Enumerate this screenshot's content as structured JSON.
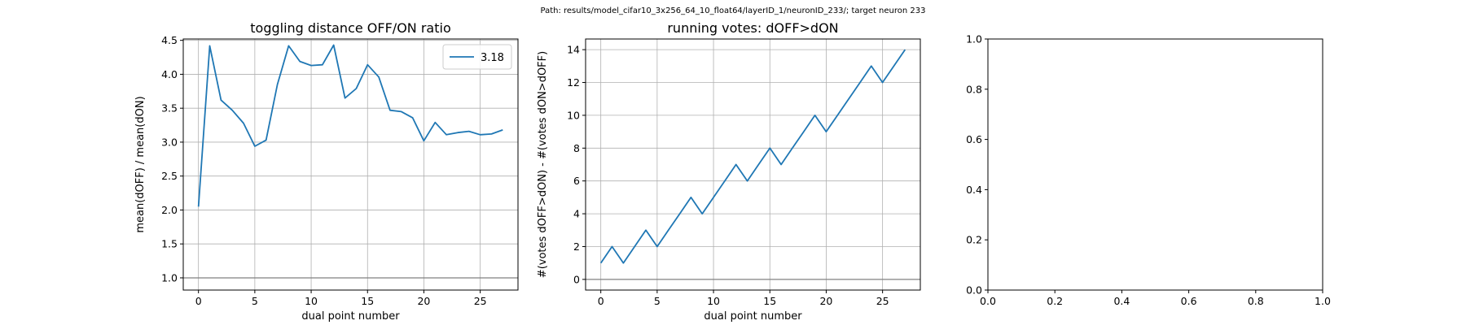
{
  "figure": {
    "suptitle": "Path: results/model_cifar10_3x256_64_10_float64/layerID_1/neuronID_233/; target neuron 233"
  },
  "colors": {
    "series": "#1f77b4",
    "grid": "#b0b0b0",
    "refline": "#808080"
  },
  "chart_data": [
    {
      "type": "line",
      "title": "toggling distance OFF/ON ratio",
      "xlabel": "dual point number",
      "ylabel": "mean(dOFF) / mean(dON)",
      "xlim": [
        -1.35,
        28.35
      ],
      "ylim": [
        0.82,
        4.52
      ],
      "xticks": [
        0,
        5,
        10,
        15,
        20,
        25
      ],
      "yticks": [
        1.0,
        1.5,
        2.0,
        2.5,
        3.0,
        3.5,
        4.0,
        4.5
      ],
      "ytick_format": 1,
      "grid": true,
      "hline": 1.0,
      "legend": {
        "position": "top-right",
        "entries": [
          "3.18"
        ]
      },
      "series": [
        {
          "name": "3.18",
          "x": [
            0,
            1,
            2,
            3,
            4,
            5,
            6,
            7,
            8,
            9,
            10,
            11,
            12,
            13,
            14,
            15,
            16,
            17,
            18,
            19,
            20,
            21,
            22,
            23,
            24,
            25,
            26,
            27
          ],
          "values": [
            2.05,
            4.42,
            3.62,
            3.47,
            3.28,
            2.94,
            3.03,
            3.85,
            4.42,
            4.19,
            4.13,
            4.14,
            4.43,
            3.65,
            3.79,
            4.14,
            3.96,
            3.47,
            3.45,
            3.36,
            3.02,
            3.29,
            3.11,
            3.14,
            3.16,
            3.11,
            3.12,
            3.18
          ]
        }
      ]
    },
    {
      "type": "line",
      "title": "running votes: dOFF>dON",
      "xlabel": "dual point number",
      "ylabel": "#(votes dOFF>dON) - #(votes dON>dOFF)",
      "xlim": [
        -1.35,
        28.35
      ],
      "ylim": [
        -0.65,
        14.65
      ],
      "xticks": [
        0,
        5,
        10,
        15,
        20,
        25
      ],
      "yticks": [
        0,
        2,
        4,
        6,
        8,
        10,
        12,
        14
      ],
      "ytick_format": 0,
      "grid": true,
      "hline": 0,
      "series": [
        {
          "name": "",
          "x": [
            0,
            1,
            2,
            3,
            4,
            5,
            6,
            7,
            8,
            9,
            10,
            11,
            12,
            13,
            14,
            15,
            16,
            17,
            18,
            19,
            20,
            21,
            22,
            23,
            24,
            25,
            26,
            27
          ],
          "values": [
            1,
            2,
            1,
            2,
            3,
            2,
            3,
            4,
            5,
            4,
            5,
            6,
            7,
            6,
            7,
            8,
            7,
            8,
            9,
            10,
            9,
            10,
            11,
            12,
            13,
            12,
            13,
            14
          ]
        }
      ]
    },
    {
      "type": "line",
      "title": "",
      "xlabel": "",
      "ylabel": "",
      "xlim": [
        0,
        1
      ],
      "ylim": [
        0,
        1
      ],
      "xticks": [
        0.0,
        0.2,
        0.4,
        0.6,
        0.8,
        1.0
      ],
      "yticks": [
        0.0,
        0.2,
        0.4,
        0.6,
        0.8,
        1.0
      ],
      "xtick_format": 1,
      "ytick_format": 1,
      "grid": false,
      "series": []
    }
  ]
}
